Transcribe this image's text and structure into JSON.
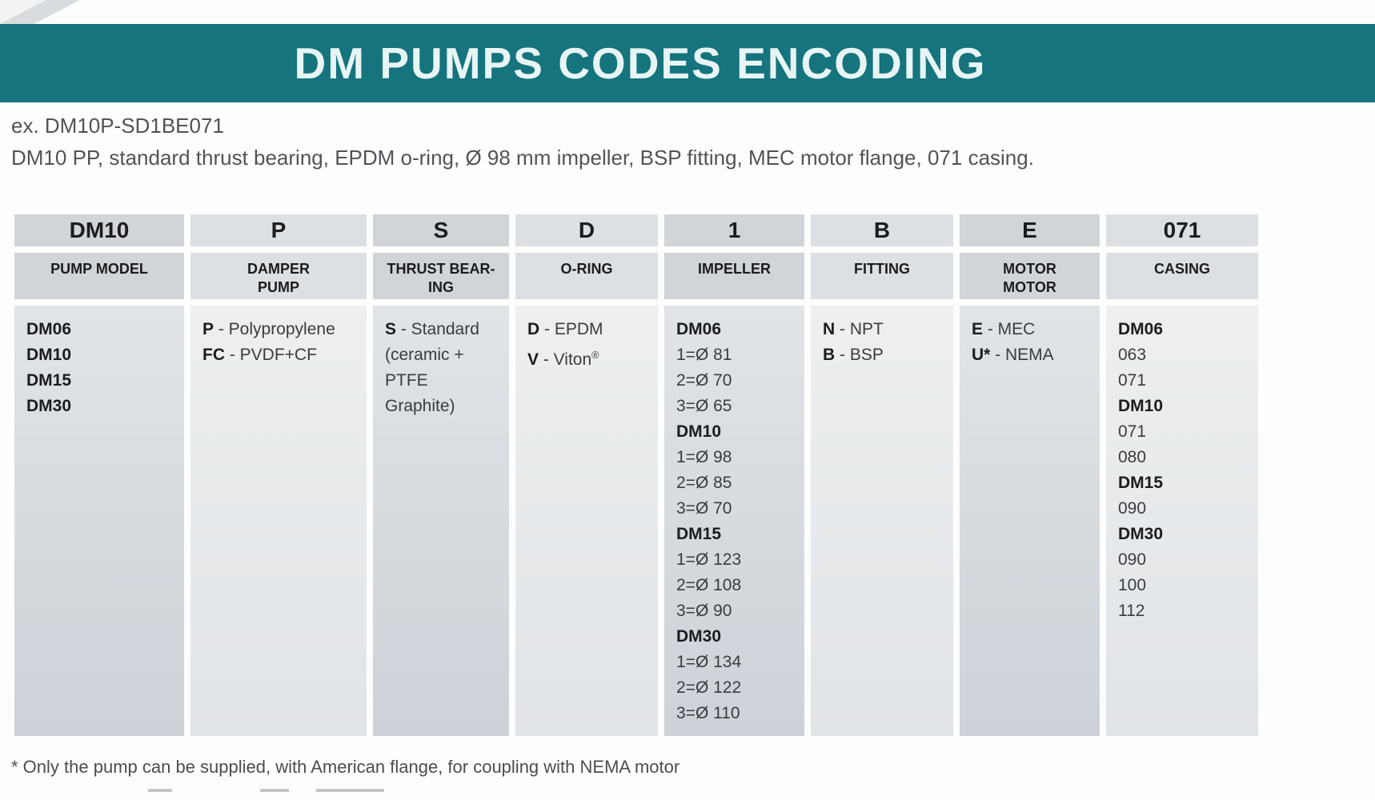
{
  "page": {
    "title": "DM PUMPS CODES ENCODING",
    "example_label": "ex. DM10P-SD1BE071",
    "example_description": "DM10 PP, standard thrust bearing, EPDM o-ring, Ø 98 mm impeller, BSP fitting, MEC motor flange, 071 casing.",
    "footnote": "* Only the pump can be supplied, with American flange, for coupling with NEMA motor"
  },
  "colors": {
    "banner": "#15747d",
    "header_cell_dark": "#d2d5d8",
    "header_cell_light": "#dde0e2",
    "body_cell_dark": "#ccd2d8",
    "body_cell_light": "#e1e4e7"
  },
  "table": {
    "columns": [
      {
        "key": "pump-model",
        "code": "DM10",
        "label_lines": [
          "PUMP MODEL"
        ],
        "body": [
          {
            "b": "DM06"
          },
          {
            "b": "DM10"
          },
          {
            "b": "DM15"
          },
          {
            "b": "DM30"
          }
        ]
      },
      {
        "key": "damper-pump",
        "code": "P",
        "label_lines": [
          "DAMPER",
          "PUMP"
        ],
        "body": [
          {
            "b": "P",
            "t": "- Polypropylene"
          },
          {
            "b": "FC",
            "t": "- PVDF+CF"
          }
        ]
      },
      {
        "key": "thrust-bearing",
        "code": "S",
        "label_lines": [
          "THRUST BEAR-",
          "ING"
        ],
        "body": [
          {
            "b": "S",
            "t": "- Standard"
          },
          {
            "t": "(ceramic +"
          },
          {
            "t": "PTFE Graphite)"
          }
        ]
      },
      {
        "key": "o-ring",
        "code": "D",
        "label_lines": [
          "O-RING"
        ],
        "body": [
          {
            "b": "D",
            "t": "- EPDM"
          },
          {
            "b": "V",
            "t": "- Viton",
            "sup": "®"
          }
        ]
      },
      {
        "key": "impeller",
        "code": "1",
        "label_lines": [
          "IMPELLER"
        ],
        "body": [
          {
            "b": "DM06"
          },
          {
            "t": "1=Ø 81"
          },
          {
            "t": "2=Ø 70"
          },
          {
            "t": "3=Ø 65"
          },
          {
            "b": "DM10"
          },
          {
            "t": "1=Ø 98"
          },
          {
            "t": "2=Ø 85"
          },
          {
            "t": "3=Ø 70"
          },
          {
            "b": "DM15"
          },
          {
            "t": "1=Ø 123"
          },
          {
            "t": "2=Ø 108"
          },
          {
            "t": "3=Ø 90"
          },
          {
            "b": "DM30"
          },
          {
            "t": "1=Ø 134"
          },
          {
            "t": "2=Ø 122"
          },
          {
            "t": "3=Ø 110"
          }
        ]
      },
      {
        "key": "fitting",
        "code": "B",
        "label_lines": [
          "FITTING"
        ],
        "body": [
          {
            "b": "N",
            "t": "- NPT"
          },
          {
            "b": "B",
            "t": "- BSP"
          }
        ]
      },
      {
        "key": "motor-flange",
        "code": "E",
        "label_lines": [
          "MOTOR",
          "MOTOR"
        ],
        "body": [
          {
            "b": "E",
            "t": "- MEC"
          },
          {
            "b": "U*",
            "t": "- NEMA"
          }
        ]
      },
      {
        "key": "casing",
        "code": "071",
        "label_lines": [
          "CASING"
        ],
        "body": [
          {
            "b": "DM06"
          },
          {
            "t": "063"
          },
          {
            "t": "071"
          },
          {
            "b": "DM10"
          },
          {
            "t": "071"
          },
          {
            "t": "080"
          },
          {
            "b": "DM15"
          },
          {
            "t": "090"
          },
          {
            "b": "DM30"
          },
          {
            "t": "090"
          },
          {
            "t": "100"
          },
          {
            "t": "112"
          }
        ]
      }
    ]
  }
}
